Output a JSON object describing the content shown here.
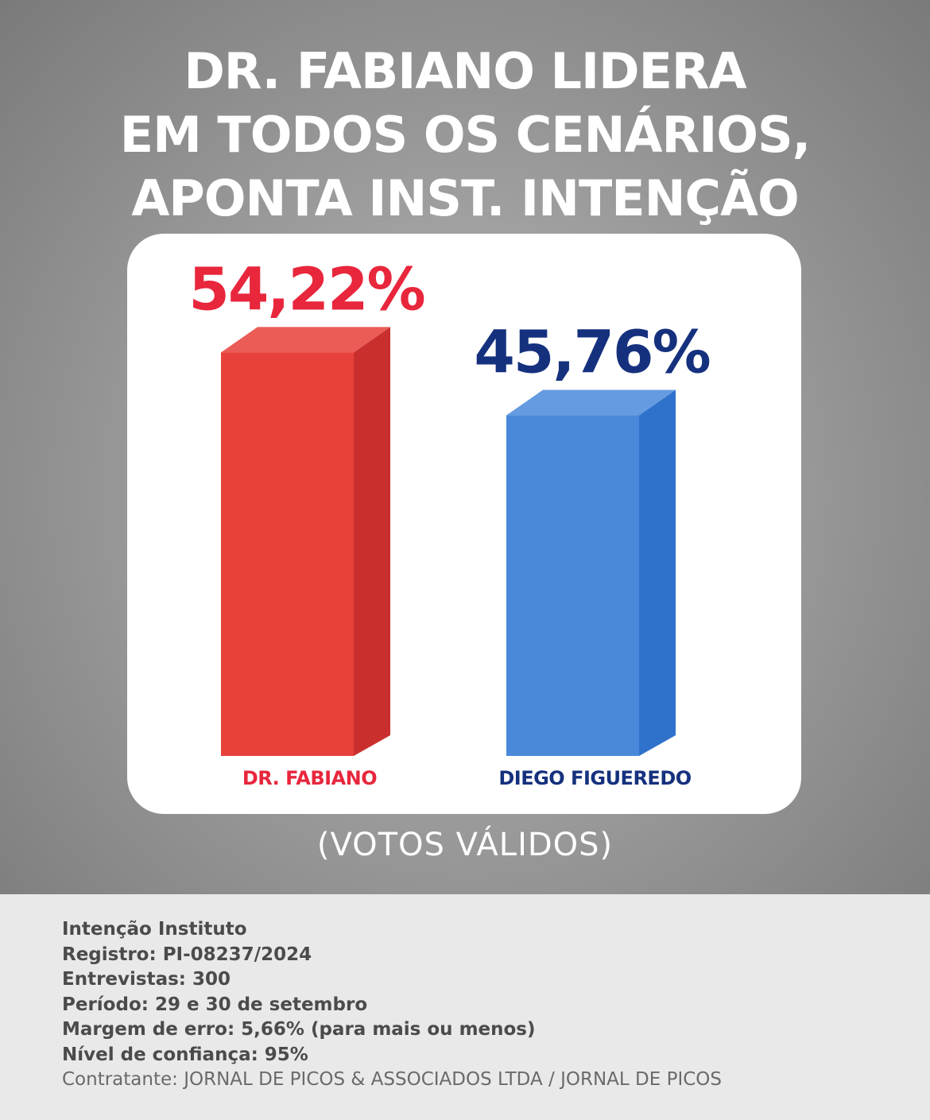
{
  "headline": {
    "line1": "DR. FABIANO LIDERA",
    "line2": "EM TODOS OS CENÁRIOS,",
    "line3": "APONTA INST. INTENÇÃO"
  },
  "subtitle": "(VOTOS VÁLIDOS)",
  "colors": {
    "red": "#e8403a",
    "red_side": "#c9302d",
    "red_label": "#e8263c",
    "blue": "#4a89da",
    "blue_side": "#2f72cc",
    "blue_label": "#15317e"
  },
  "chart_data": {
    "type": "bar",
    "categories": [
      "DR. FABIANO",
      "DIEGO FIGUEREDO"
    ],
    "values": [
      54.22,
      45.76
    ],
    "value_labels": [
      "54,22%",
      "45,76%"
    ],
    "title": "",
    "xlabel": "",
    "ylabel": "",
    "grid": false
  },
  "meta": {
    "institute": "Intenção Instituto",
    "registro": "Registro: PI-08237/2024",
    "entrevistas": "Entrevistas: 300",
    "periodo": "Período: 29 e 30 de setembro",
    "margem": "Margem de erro: 5,66% (para mais ou menos)",
    "confianca": "Nível de confiança: 95%",
    "contratante": "Contratante: JORNAL DE PICOS & ASSOCIADOS LTDA / JORNAL DE PICOS"
  }
}
